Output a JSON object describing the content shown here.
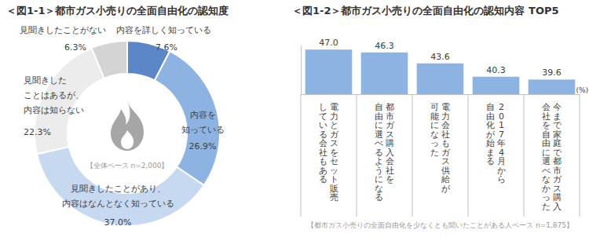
{
  "chart_data": [
    {
      "type": "pie",
      "title": "＜図1-1＞都市ガス小売りの全面自由化の認知度",
      "categories": [
        "内容を詳しく知っている",
        "内容を\n知っている",
        "見聞きしたことがあり、\n内容はなんとなく知っている",
        "見聞きした\nことはあるが、\n内容は知らない",
        "見聞きしたことがない"
      ],
      "values": [
        7.6,
        26.9,
        37.0,
        22.3,
        6.3
      ],
      "value_labels": [
        "7.6%",
        "26.9%",
        "37.0%",
        "22.3%",
        "6.3%"
      ],
      "colors": [
        "#5b87c9",
        "#8db3e2",
        "#c6d9f1",
        "#ececec",
        "#d4d4d4"
      ],
      "data_labels": true,
      "annotations": [
        "【全体ベース n=2,000】"
      ]
    },
    {
      "type": "bar",
      "title": "＜図1-2＞都市ガス小売りの全面自由化の認知内容 TOP5",
      "categories": [
        "電力とガスをセット販売\nしている会社もある",
        "都市ガス購入会社を\n自由に選べるようになる",
        "電力会社もガス供給が\n可能になった",
        "2017年4月から\n自由化が始まる",
        "今まで家庭で都市ガス購入\n会社を自由に選べなかった"
      ],
      "values": [
        47.0,
        46.3,
        43.6,
        40.3,
        39.6
      ],
      "value_labels": [
        "47.0",
        "46.3",
        "43.6",
        "40.3",
        "39.6"
      ],
      "color": "#8db3e2",
      "ylim": [
        36,
        48
      ],
      "ylabel": "(%)",
      "data_labels": true,
      "tick_labels": "x",
      "annotations": [
        "【都市ガス小売りの全面自由化を少なくとも聞いたことがある人ベース n=1,875】"
      ]
    }
  ]
}
